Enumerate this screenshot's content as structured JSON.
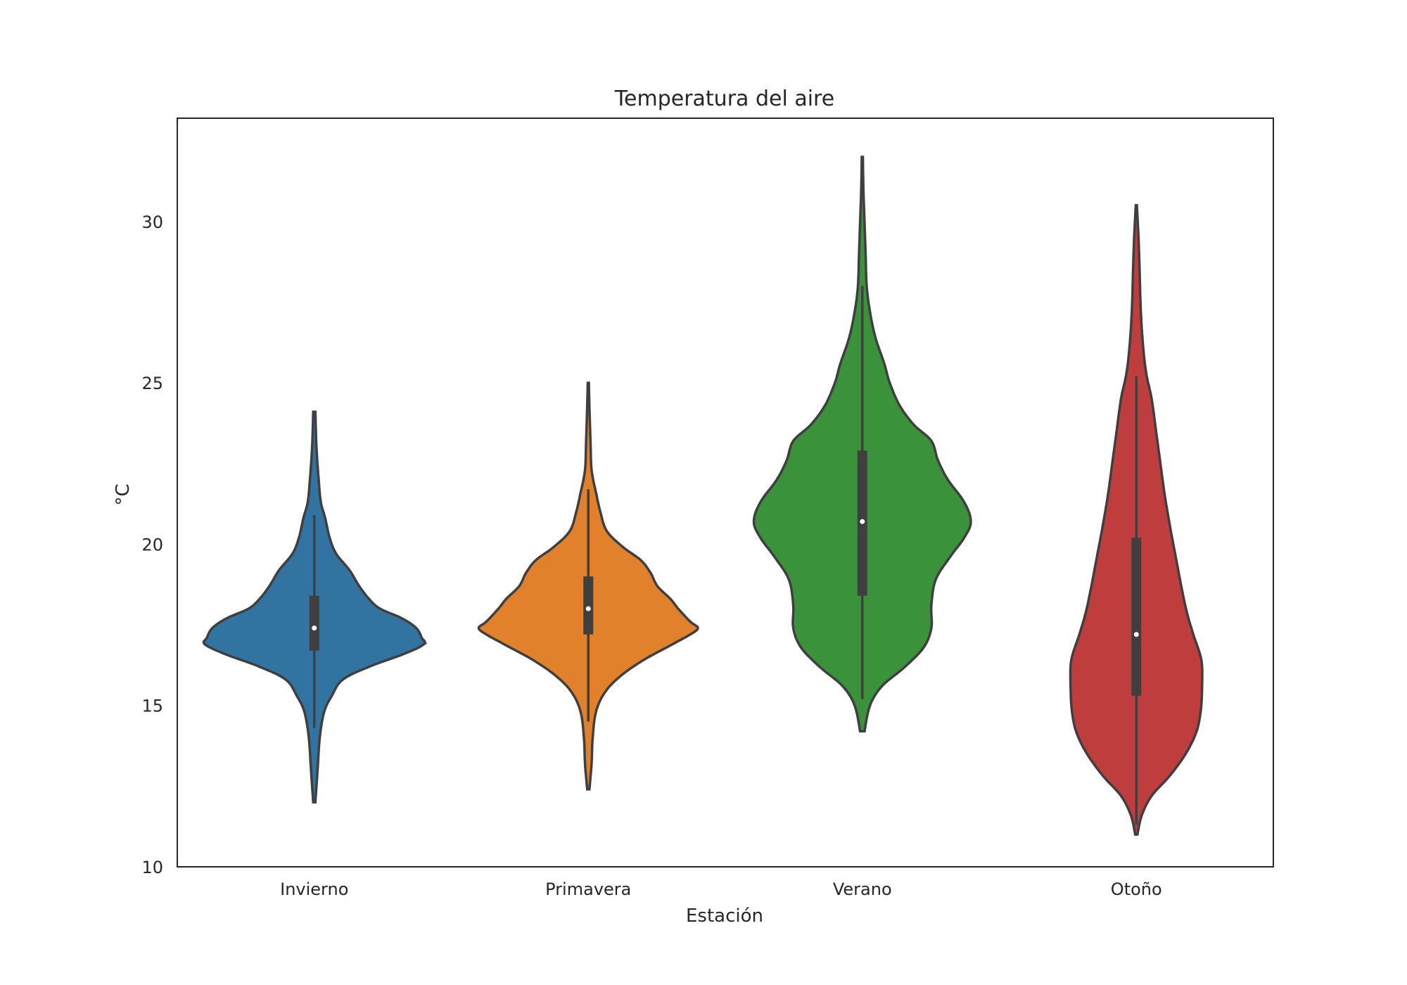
{
  "chart_data": {
    "type": "violin",
    "title": "Temperatura del aire",
    "xlabel": "Estación",
    "ylabel": "°C",
    "ylim": [
      10,
      33.2
    ],
    "yticks": [
      10,
      15,
      20,
      25,
      30
    ],
    "grid": false,
    "categories": [
      "Invierno",
      "Primavera",
      "Verano",
      "Otoño"
    ],
    "series": [
      {
        "category": "Invierno",
        "color": "#3274a1",
        "min": 12.0,
        "max": 24.1,
        "q1": 16.7,
        "median": 17.4,
        "q3": 18.4,
        "whisker_low": 14.3,
        "whisker_high": 20.9,
        "density_y": [
          12.0,
          13.0,
          14.0,
          14.8,
          15.3,
          15.8,
          16.2,
          16.6,
          16.9,
          17.1,
          17.4,
          17.7,
          18.0,
          18.3,
          18.7,
          19.2,
          19.7,
          20.2,
          20.8,
          21.3,
          22.0,
          23.0,
          24.1
        ],
        "density_w": [
          0.01,
          0.03,
          0.05,
          0.09,
          0.16,
          0.26,
          0.5,
          0.82,
          1.0,
          0.98,
          0.93,
          0.8,
          0.6,
          0.5,
          0.41,
          0.32,
          0.2,
          0.14,
          0.1,
          0.06,
          0.04,
          0.02,
          0.01
        ]
      },
      {
        "category": "Primavera",
        "color": "#e1812c",
        "min": 12.4,
        "max": 25.0,
        "q1": 17.2,
        "median": 18.0,
        "q3": 19.0,
        "whisker_low": 14.5,
        "whisker_high": 21.7,
        "density_y": [
          12.4,
          13.2,
          14.0,
          14.8,
          15.4,
          15.9,
          16.4,
          16.9,
          17.2,
          17.4,
          17.6,
          18.0,
          18.3,
          18.7,
          19.1,
          19.5,
          19.9,
          20.4,
          21.0,
          21.6,
          22.3,
          23.2,
          24.3,
          25.0
        ],
        "density_w": [
          0.01,
          0.03,
          0.04,
          0.07,
          0.15,
          0.29,
          0.5,
          0.77,
          0.93,
          1.0,
          0.93,
          0.82,
          0.75,
          0.63,
          0.57,
          0.48,
          0.32,
          0.17,
          0.11,
          0.07,
          0.03,
          0.02,
          0.01,
          0.005
        ]
      },
      {
        "category": "Verano",
        "color": "#3a923a",
        "min": 14.2,
        "max": 32.0,
        "q1": 18.4,
        "median": 20.7,
        "q3": 22.9,
        "whisker_low": 15.2,
        "whisker_high": 28.0,
        "density_y": [
          14.2,
          15.0,
          15.6,
          16.2,
          16.8,
          17.4,
          18.1,
          18.9,
          19.6,
          20.2,
          20.7,
          21.3,
          22.0,
          22.6,
          23.2,
          23.7,
          24.3,
          25.0,
          25.6,
          26.4,
          27.2,
          28.0,
          29.0,
          30.0,
          31.0,
          32.0
        ],
        "density_w": [
          0.02,
          0.07,
          0.18,
          0.39,
          0.56,
          0.63,
          0.63,
          0.67,
          0.8,
          0.93,
          0.99,
          0.93,
          0.78,
          0.69,
          0.63,
          0.47,
          0.34,
          0.25,
          0.2,
          0.12,
          0.07,
          0.04,
          0.03,
          0.02,
          0.01,
          0.005
        ]
      },
      {
        "category": "Otoño",
        "color": "#c03d3e",
        "min": 11.0,
        "max": 30.5,
        "q1": 15.3,
        "median": 17.2,
        "q3": 20.2,
        "whisker_low": 11.3,
        "whisker_high": 25.2,
        "density_y": [
          11.0,
          11.6,
          12.2,
          12.8,
          13.5,
          14.2,
          14.9,
          15.6,
          16.2,
          16.6,
          17.2,
          17.9,
          18.7,
          19.6,
          20.5,
          21.5,
          22.5,
          23.5,
          24.5,
          25.3,
          26.2,
          27.3,
          28.5,
          29.5,
          30.5
        ],
        "density_w": [
          0.01,
          0.05,
          0.14,
          0.3,
          0.45,
          0.55,
          0.59,
          0.6,
          0.6,
          0.58,
          0.52,
          0.46,
          0.41,
          0.36,
          0.31,
          0.26,
          0.22,
          0.18,
          0.14,
          0.09,
          0.06,
          0.04,
          0.03,
          0.02,
          0.005
        ]
      }
    ]
  }
}
